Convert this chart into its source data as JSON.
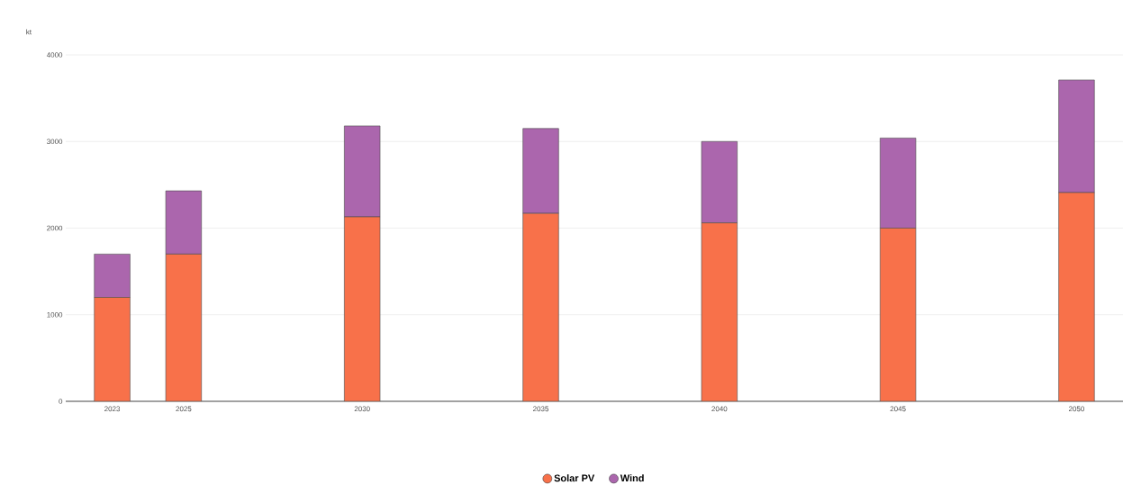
{
  "chart_data": {
    "type": "bar",
    "stacked": true,
    "ylabel": "kt",
    "x": [
      2023,
      2025,
      2030,
      2035,
      2040,
      2045,
      2050
    ],
    "series": [
      {
        "name": "Solar PV",
        "color": "#f8714a",
        "values": [
          1200,
          1700,
          2130,
          2170,
          2060,
          2000,
          2410
        ]
      },
      {
        "name": "Wind",
        "color": "#ab66ad",
        "values": [
          500,
          730,
          1050,
          980,
          940,
          1040,
          1300
        ]
      }
    ],
    "xlim": [
      2021.7,
      2051.3
    ],
    "xticks": [
      2023,
      2025,
      2030,
      2035,
      2040,
      2045,
      2050
    ],
    "ylim": [
      0,
      4000
    ],
    "yticks": [
      0,
      1000,
      2000,
      3000,
      4000
    ],
    "grid": "y",
    "legend": "bottom"
  }
}
